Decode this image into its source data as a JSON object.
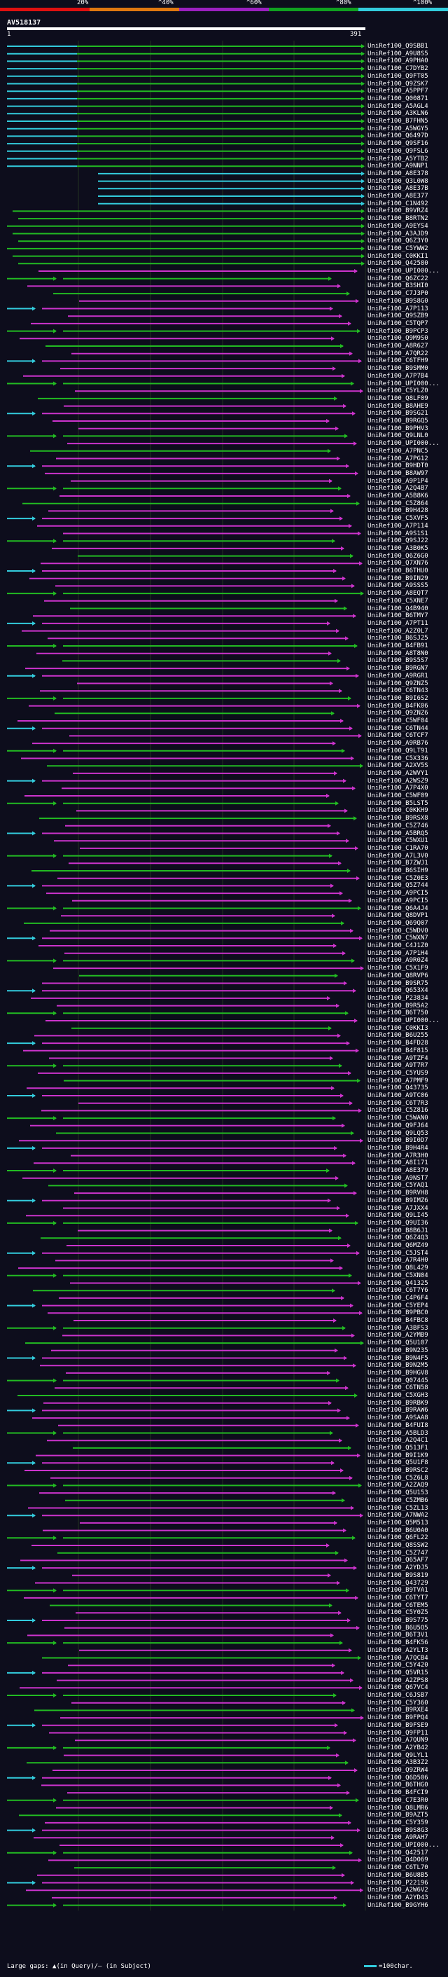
{
  "scale": {
    "labels": [
      "20%",
      "^40%",
      "^60%",
      "^80%",
      "^100%"
    ],
    "colors": [
      "#e01010",
      "#e07810",
      "#9b20c0",
      "#10a020",
      "#33ccdd"
    ]
  },
  "query": {
    "name": "AV518137",
    "start": "1",
    "end": "391"
  },
  "colors": {
    "cyan": "#33ccdd",
    "green": "#22bb22",
    "magenta": "#cc33cc",
    "grid": "#223322"
  },
  "hits": [
    "UniRef100_Q9SBB1",
    "UniRef100_A9U8S5",
    "UniRef100_A9PHA0",
    "UniRef100_C7DYB2",
    "UniRef100_Q9FT05",
    "UniRef100_Q9ZSK7",
    "UniRef100_A5PPF7",
    "UniRef100_Q00871",
    "UniRef100_A5AGL4",
    "UniRef100_A3KLN6",
    "UniRef100_B7FHN5",
    "UniRef100_A5WGY5",
    "UniRef100_Q6497D",
    "UniRef100_Q9SF16",
    "UniRef100_Q9FSL6",
    "UniRef100_A5YTB2",
    "UniRef100_A9NNP1",
    "UniRef100_A8E378",
    "UniRef100_Q3L0W8",
    "UniRef100_A8E37B",
    "UniRef100_A8E377",
    "UniRef100_C1N492",
    "UniRef100_B9VRZ4",
    "UniRef100_B8RTN2",
    "UniRef100_A9EYS4",
    "UniRef100_A3AJD9",
    "UniRef100_Q6Z3Y0",
    "UniRef100_C5YWW2",
    "UniRef100_C0KKI1",
    "UniRef100_Q42580",
    "UniRef100_UPI000...",
    "UniRef100_Q6ZC22",
    "UniRef100_B3SHI0",
    "UniRef100_C7J3P0",
    "UniRef100_B9S8G0",
    "UniRef100_A7P113",
    "UniRef100_Q9SZB9",
    "UniRef100_C5TQP7",
    "UniRef100_B9PCP3",
    "UniRef100_Q9M9S0",
    "UniRef100_A8R627",
    "UniRef100_A7QR22",
    "UniRef100_C6TFH9",
    "UniRef100_B9SMM0",
    "UniRef100_A7P7B4",
    "UniRef100_UPI000...",
    "UniRef100_C5YLZ0",
    "UniRef100_Q8LF09",
    "UniRef100_B8AHE9",
    "UniRef100_B9SG21",
    "UniRef100_B9RGQ5",
    "UniRef100_B9PHV3",
    "UniRef100_Q9LNL0",
    "UniRef100_UPI000...",
    "UniRef100_A7PNC5",
    "UniRef100_A7PG12",
    "UniRef100_B9HDT0",
    "UniRef100_B8AW97",
    "UniRef100_A9P1P4",
    "UniRef100_A2Q4B7",
    "UniRef100_A5B8K6",
    "UniRef100_C5Z864",
    "UniRef100_B9H428",
    "UniRef100_C5XVF5",
    "UniRef100_A7P114",
    "UniRef100_A9S1S1",
    "UniRef100_Q9SJ22",
    "UniRef100_A3B0K5",
    "UniRef100_Q6Z6G0",
    "UniRef100_Q7XN76",
    "UniRef100_B6THU0",
    "UniRef100_B9IN29",
    "UniRef100_A9SSS5",
    "UniRef100_A8EQT7",
    "UniRef100_C5XNE7",
    "UniRef100_Q4B940",
    "UniRef100_B6TMY7",
    "UniRef100_A7PT11",
    "UniRef100_A2Z0L7",
    "UniRef100_B6SJ25",
    "UniRef100_B4FB91",
    "UniRef100_A8T8N0",
    "UniRef100_B9S5S7",
    "UniRef100_B9RGN7",
    "UniRef100_A9RGR1",
    "UniRef100_Q9ZNZ5",
    "UniRef100_C6TN43",
    "UniRef100_B9I6S2",
    "UniRef100_B4FK06",
    "UniRef100_Q9ZNZ6",
    "UniRef100_C5WF04",
    "UniRef100_C6TN44",
    "UniRef100_C6TCF7",
    "UniRef100_A9RB76",
    "UniRef100_Q9LT91",
    "UniRef100_C5X336",
    "UniRef100_A2XV5S",
    "UniRef100_A2WVY1",
    "UniRef100_A2WSZ9",
    "UniRef100_A7P4X0",
    "UniRef100_C5WF09",
    "UniRef100_B5LST5",
    "UniRef100_C0KKH9",
    "UniRef100_B9RSX8",
    "UniRef100_C5Z746",
    "UniRef100_A5BRQ5",
    "UniRef100_C5WXU1",
    "UniRef100_C1RA70",
    "UniRef100_A7L3V0",
    "UniRef100_B7ZWJ1",
    "UniRef100_B6SIH9",
    "UniRef100_C5Z0E3",
    "UniRef100_Q5Z744",
    "UniRef100_A9PCI5",
    "UniRef100_A9PCI5",
    "UniRef100_Q6A4J4",
    "UniRef100_Q8DVP1",
    "UniRef100_Q69Q07",
    "UniRef100_C5WDV0",
    "UniRef100_C5WXN7",
    "UniRef100_C4J1Z0",
    "UniRef100_A7P1H4",
    "UniRef100_A9R0Z4",
    "UniRef100_C5X1F9",
    "UniRef100_Q8RVP6",
    "UniRef100_B9SR75",
    "UniRef100_Q653X4",
    "UniRef100_P23834",
    "UniRef100_B9R5A2",
    "UniRef100_B6T750",
    "UniRef100_UPI000...",
    "UniRef100_C0KKI3",
    "UniRef100_B6U255",
    "UniRef100_B4FD28",
    "UniRef100_B4F815",
    "UniRef100_A9TZF4",
    "UniRef100_A9T7R7",
    "UniRef100_C5YUS9",
    "UniRef100_A7PMF9",
    "UniRef100_Q43735",
    "UniRef100_A9TC06",
    "UniRef100_C6T7R3",
    "UniRef100_C5Z816",
    "UniRef100_C5WAN0",
    "UniRef100_Q9FJ64",
    "UniRef100_Q9LQ53",
    "UniRef100_B9I0D7",
    "UniRef100_B9H4R4",
    "UniRef100_A7R3H0",
    "UniRef100_A8I171",
    "UniRef100_A8E379",
    "UniRef100_A9NST7",
    "UniRef100_C5YAQ1",
    "UniRef100_B9RVH8",
    "UniRef100_B9IMZ6",
    "UniRef100_A7JXX4",
    "UniRef100_Q9LI45",
    "UniRef100_Q9UI36",
    "UniRef100_B8B6J1",
    "UniRef100_Q6Z4Q3",
    "UniRef100_Q6MZ49",
    "UniRef100_C5JST4",
    "UniRef100_A7R4H0",
    "UniRef100_Q8L429",
    "UniRef100_C5XN04",
    "UniRef100_Q41325",
    "UniRef100_C6T7Y6",
    "UniRef100_C4P6F4",
    "UniRef100_C5YEP4",
    "UniRef100_B9PBC0",
    "UniRef100_B4FBC8",
    "UniRef100_A3BFS3",
    "UniRef100_A2YMB9",
    "UniRef100_Q5U107",
    "UniRef100_B9N235",
    "UniRef100_B9N4F5",
    "UniRef100_B9N2M5",
    "UniRef100_B9HGV8",
    "UniRef100_Q07445",
    "UniRef100_C6TN58",
    "UniRef100_C5XGH3",
    "UniRef100_B9RBK9",
    "UniRef100_B9RAW6",
    "UniRef100_A9SAA8",
    "UniRef100_B4FUI8",
    "UniRef100_A5BLD3",
    "UniRef100_A2Q4C1",
    "UniRef100_Q513F1",
    "UniRef100_B9I1K9",
    "UniRef100_Q5U1F8",
    "UniRef100_B9RSC2",
    "UniRef100_C5Z6L8",
    "UniRef100_A2ZAQ9",
    "UniRef100_Q5U153",
    "UniRef100_C5ZMB6",
    "UniRef100_C5ZL13",
    "UniRef100_A7NWA2",
    "UniRef100_Q5M513",
    "UniRef100_B6U0A0",
    "UniRef100_Q6FL22",
    "UniRef100_Q8SSW2",
    "UniRef100_C5Z747",
    "UniRef100_Q65AF7",
    "UniRef100_A2YDJ5",
    "UniRef100_B9S819",
    "UniRef100_Q43729",
    "UniRef100_B9TVA1",
    "UniRef100_C6TYT7",
    "UniRef100_C6TEM5",
    "UniRef100_C5Y0Z5",
    "UniRef100_B9S775",
    "UniRef100_B6U5O5",
    "UniRef100_B6T3V1",
    "UniRef100_B4FK56",
    "UniRef100_A2YLT3",
    "UniRef100_A7QCB4",
    "UniRef100_C5Y420",
    "UniRef100_Q5VR15",
    "UniRef100_A2ZPS8",
    "UniRef100_Q67VC4",
    "UniRef100_C6JSB7",
    "UniRef100_C5Y360",
    "UniRef100_B9RXE4",
    "UniRef100_B9FPQ4",
    "UniRef100_B9FSE9",
    "UniRef100_Q9FP11",
    "UniRef100_A7QUN9",
    "UniRef100_A2YB42",
    "UniRef100_Q9LYL1",
    "UniRef100_A3B3Z2",
    "UniRef100_Q9ZRW4",
    "UniRef100_Q6D506",
    "UniRef100_B6THG0",
    "UniRef100_B4FCI9",
    "UniRef100_C7E3R0",
    "UniRef100_Q8LMR6",
    "UniRef100_B9AZT5",
    "UniRef100_C5Y359",
    "UniRef100_B9S8G3",
    "UniRef100_A9RAH7",
    "UniRef100_UPI000...",
    "UniRef100_Q42517",
    "UniRef100_Q4D069",
    "UniRef100_C6TL70",
    "UniRef100_B6U8B5",
    "UniRef100_P22196",
    "UniRef100_A2W6V2",
    "UniRef100_A2YD43",
    "UniRef100_B9GYH6"
  ],
  "legend": {
    "text": "Large gaps: ▲(in Query)/— (in Subject)",
    "scale": "=100char."
  }
}
